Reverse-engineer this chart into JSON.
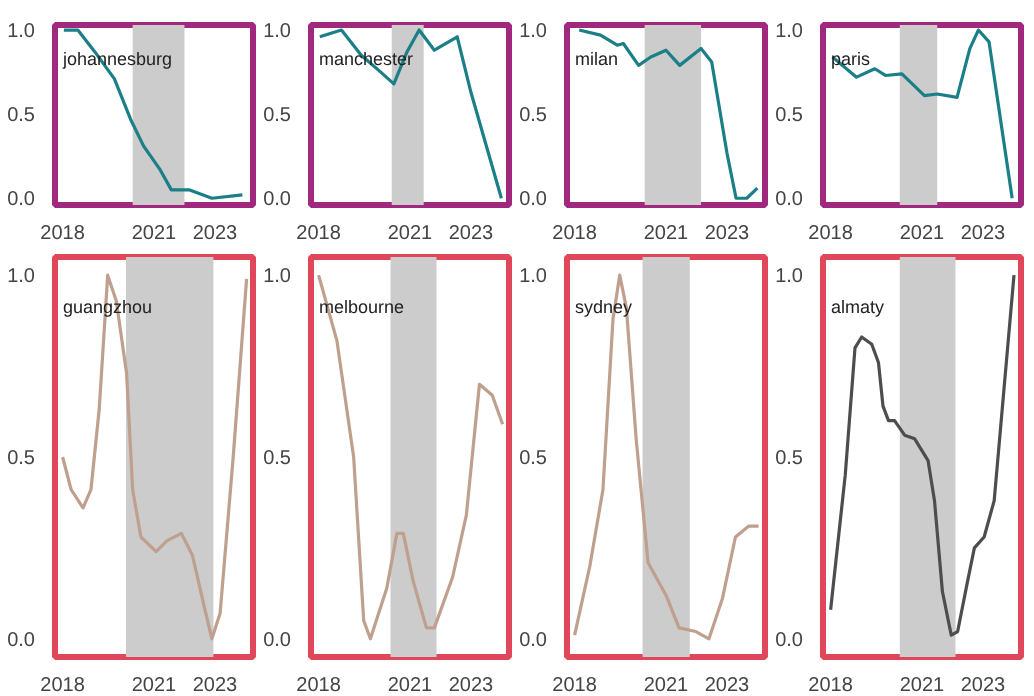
{
  "chart_data": [
    {
      "type": "line",
      "title": "johannesburg",
      "xlim": [
        2017.75,
        2024.25
      ],
      "ylim": [
        -0.04,
        1.03
      ],
      "xticks": [
        2018,
        2021,
        2023
      ],
      "yticks": [
        {
          "value": 0,
          "label": "0.0"
        },
        {
          "value": 0.5,
          "label": "0.5"
        },
        {
          "value": 1,
          "label": "1.0"
        }
      ],
      "grid": false,
      "bands": [
        {
          "axis": "x",
          "from": 2020.3,
          "to": 2022.0,
          "color": "#cccccc"
        }
      ],
      "series": [
        {
          "color": "#1a7f86",
          "x": [
            2018.04,
            2018.5,
            2019.06,
            2019.7,
            2020.23,
            2020.66,
            2021.2,
            2021.57,
            2022.15,
            2022.9,
            2023.9
          ],
          "values": [
            1.0,
            1.0,
            0.87,
            0.71,
            0.47,
            0.31,
            0.17,
            0.05,
            0.05,
            0.0,
            0.02
          ]
        }
      ]
    },
    {
      "type": "line",
      "title": "manchester",
      "xlim": [
        2017.75,
        2024.25
      ],
      "ylim": [
        -0.04,
        1.03
      ],
      "xticks": [
        2018,
        2021,
        2023
      ],
      "yticks": [
        {
          "value": 0,
          "label": "0.0"
        },
        {
          "value": 0.5,
          "label": "0.5"
        },
        {
          "value": 1,
          "label": "1.0"
        }
      ],
      "grid": false,
      "bands": [
        {
          "axis": "x",
          "from": 2020.4,
          "to": 2021.45,
          "color": "#cccccc"
        }
      ],
      "series": [
        {
          "color": "#1a7f86",
          "x": [
            2018.04,
            2018.75,
            2019.4,
            2020.04,
            2020.47,
            2020.9,
            2021.3,
            2021.8,
            2022.55,
            2023.0,
            2024.0
          ],
          "values": [
            0.96,
            1.0,
            0.85,
            0.75,
            0.68,
            0.87,
            1.0,
            0.88,
            0.96,
            0.63,
            0.0
          ]
        }
      ]
    },
    {
      "type": "line",
      "title": "milan",
      "xlim": [
        2017.75,
        2024.25
      ],
      "ylim": [
        -0.04,
        1.03
      ],
      "xticks": [
        2018,
        2021,
        2023
      ],
      "yticks": [
        {
          "value": 0,
          "label": "0.0"
        },
        {
          "value": 0.5,
          "label": "0.5"
        },
        {
          "value": 1,
          "label": "1.0"
        }
      ],
      "grid": false,
      "bands": [
        {
          "axis": "x",
          "from": 2020.3,
          "to": 2022.15,
          "color": "#cccccc"
        }
      ],
      "series": [
        {
          "color": "#1a7f86",
          "x": [
            2018.15,
            2018.85,
            2019.4,
            2019.6,
            2020.1,
            2020.5,
            2021.0,
            2021.45,
            2022.15,
            2022.5,
            2023.0,
            2023.3,
            2023.65,
            2024.0
          ],
          "values": [
            1.0,
            0.97,
            0.91,
            0.92,
            0.79,
            0.84,
            0.88,
            0.79,
            0.89,
            0.81,
            0.27,
            0.0,
            0.0,
            0.06
          ]
        }
      ]
    },
    {
      "type": "line",
      "title": "paris",
      "xlim": [
        2017.75,
        2024.25
      ],
      "ylim": [
        -0.04,
        1.03
      ],
      "xticks": [
        2018,
        2021,
        2023
      ],
      "yticks": [
        {
          "value": 0,
          "label": "0.0"
        },
        {
          "value": 0.5,
          "label": "0.5"
        },
        {
          "value": 1,
          "label": "1.0"
        }
      ],
      "grid": false,
      "bands": [
        {
          "axis": "x",
          "from": 2020.27,
          "to": 2021.5,
          "color": "#cccccc"
        }
      ],
      "series": [
        {
          "color": "#1a7f86",
          "x": [
            2018.06,
            2018.85,
            2019.45,
            2019.8,
            2020.34,
            2021.08,
            2021.5,
            2022.15,
            2022.57,
            2022.85,
            2023.2,
            2023.96
          ],
          "values": [
            0.84,
            0.72,
            0.77,
            0.73,
            0.74,
            0.61,
            0.62,
            0.6,
            0.89,
            1.0,
            0.93,
            0.0
          ]
        }
      ]
    },
    {
      "type": "line",
      "title": "guangzhou",
      "xlim": [
        2017.75,
        2024.25
      ],
      "ylim": [
        -0.05,
        1.05
      ],
      "xticks": [
        2018,
        2021,
        2023
      ],
      "yticks": [
        {
          "value": 0,
          "label": "0.0"
        },
        {
          "value": 0.5,
          "label": "0.5"
        },
        {
          "value": 1,
          "label": "1.0"
        }
      ],
      "grid": false,
      "bands": [
        {
          "axis": "x",
          "from": 2020.08,
          "to": 2022.95,
          "color": "#cccccc"
        }
      ],
      "series": [
        {
          "color": "#bf9f8e",
          "x": [
            2018.0,
            2018.28,
            2018.67,
            2018.93,
            2019.2,
            2019.48,
            2019.76,
            2020.1,
            2020.3,
            2020.57,
            2021.07,
            2021.43,
            2021.9,
            2022.26,
            2022.7,
            2022.9,
            2023.17,
            2023.6,
            2024.04
          ],
          "values": [
            0.5,
            0.41,
            0.36,
            0.41,
            0.63,
            1.0,
            0.93,
            0.73,
            0.41,
            0.28,
            0.24,
            0.27,
            0.29,
            0.23,
            0.07,
            0.0,
            0.07,
            0.5,
            0.99
          ]
        }
      ]
    },
    {
      "type": "line",
      "title": "melbourne",
      "xlim": [
        2017.75,
        2024.25
      ],
      "ylim": [
        -0.05,
        1.05
      ],
      "xticks": [
        2018,
        2021,
        2023
      ],
      "yticks": [
        {
          "value": 0,
          "label": "0.0"
        },
        {
          "value": 0.5,
          "label": "0.5"
        },
        {
          "value": 1,
          "label": "1.0"
        }
      ],
      "grid": false,
      "bands": [
        {
          "axis": "x",
          "from": 2020.36,
          "to": 2021.87,
          "color": "#cccccc"
        }
      ],
      "series": [
        {
          "color": "#bf9f8e",
          "x": [
            2018.0,
            2018.6,
            2019.15,
            2019.48,
            2019.7,
            2020.24,
            2020.57,
            2020.78,
            2021.1,
            2021.54,
            2021.8,
            2022.4,
            2022.85,
            2023.28,
            2023.7,
            2024.04
          ],
          "values": [
            1.0,
            0.82,
            0.5,
            0.05,
            0.0,
            0.14,
            0.29,
            0.29,
            0.16,
            0.03,
            0.03,
            0.17,
            0.34,
            0.7,
            0.67,
            0.59
          ]
        }
      ]
    },
    {
      "type": "line",
      "title": "sydney",
      "xlim": [
        2017.75,
        2024.25
      ],
      "ylim": [
        -0.05,
        1.05
      ],
      "xticks": [
        2018,
        2021,
        2023
      ],
      "yticks": [
        {
          "value": 0,
          "label": "0.0"
        },
        {
          "value": 0.5,
          "label": "0.5"
        },
        {
          "value": 1,
          "label": "1.0"
        }
      ],
      "grid": false,
      "bands": [
        {
          "axis": "x",
          "from": 2020.23,
          "to": 2021.78,
          "color": "#cccccc"
        }
      ],
      "series": [
        {
          "color": "#bf9f8e",
          "x": [
            2018.0,
            2018.5,
            2018.93,
            2019.26,
            2019.48,
            2019.7,
            2020.02,
            2020.41,
            2020.67,
            2021.0,
            2021.43,
            2021.98,
            2022.41,
            2022.85,
            2023.28,
            2023.72,
            2024.04
          ],
          "values": [
            0.01,
            0.2,
            0.41,
            0.88,
            1.0,
            0.91,
            0.55,
            0.21,
            0.17,
            0.12,
            0.03,
            0.02,
            0.0,
            0.11,
            0.28,
            0.31,
            0.31
          ]
        }
      ]
    },
    {
      "type": "line",
      "title": "almaty",
      "xlim": [
        2017.75,
        2024.25
      ],
      "ylim": [
        -0.05,
        1.05
      ],
      "xticks": [
        2018,
        2021,
        2023
      ],
      "yticks": [
        {
          "value": 0,
          "label": "0.0"
        },
        {
          "value": 0.5,
          "label": "0.5"
        },
        {
          "value": 1,
          "label": "1.0"
        }
      ],
      "grid": false,
      "bands": [
        {
          "axis": "x",
          "from": 2020.27,
          "to": 2022.1,
          "color": "#cccccc"
        }
      ],
      "series": [
        {
          "color": "#4d4d4d",
          "x": [
            2018.0,
            2018.48,
            2018.8,
            2019.02,
            2019.35,
            2019.57,
            2019.72,
            2019.9,
            2020.1,
            2020.43,
            2020.76,
            2021.2,
            2021.41,
            2021.67,
            2021.96,
            2022.17,
            2022.5,
            2022.72,
            2023.04,
            2023.37,
            2024.02
          ],
          "values": [
            0.08,
            0.45,
            0.8,
            0.83,
            0.81,
            0.76,
            0.64,
            0.6,
            0.6,
            0.56,
            0.55,
            0.49,
            0.38,
            0.13,
            0.01,
            0.02,
            0.16,
            0.25,
            0.28,
            0.38,
            1.0
          ]
        }
      ]
    }
  ]
}
